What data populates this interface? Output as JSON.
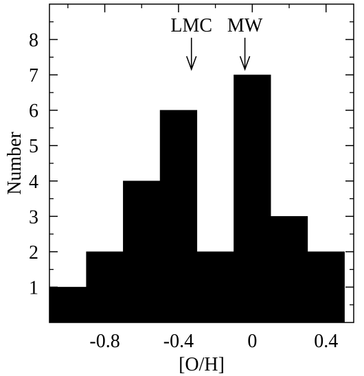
{
  "chart_data": {
    "type": "bar",
    "histogram": true,
    "bin_edges": [
      -1.1,
      -0.9,
      -0.7,
      -0.5,
      -0.3,
      -0.1,
      0.1,
      0.3,
      0.5
    ],
    "values": [
      1,
      2,
      4,
      6,
      2,
      7,
      3,
      2
    ],
    "xlabel": "[O/H]",
    "ylabel": "Number",
    "xlim": [
      -1.1,
      0.55
    ],
    "ylim": [
      0,
      9
    ],
    "x_tick_labels": [
      {
        "value": -0.8,
        "label": "-0.8"
      },
      {
        "value": -0.4,
        "label": "-0.4"
      },
      {
        "value": 0,
        "label": "0"
      },
      {
        "value": 0.4,
        "label": "0.4"
      }
    ],
    "x_minor_ticks": [
      -1.0,
      -0.6,
      -0.2,
      0.2
    ],
    "y_tick_labels": [
      "1",
      "2",
      "3",
      "4",
      "5",
      "6",
      "7",
      "8"
    ],
    "annotations": [
      {
        "label": "LMC",
        "x": -0.33
      },
      {
        "label": "MW",
        "x": -0.04
      }
    ],
    "bar_color": "#000000",
    "grid": false,
    "legend": "none"
  }
}
